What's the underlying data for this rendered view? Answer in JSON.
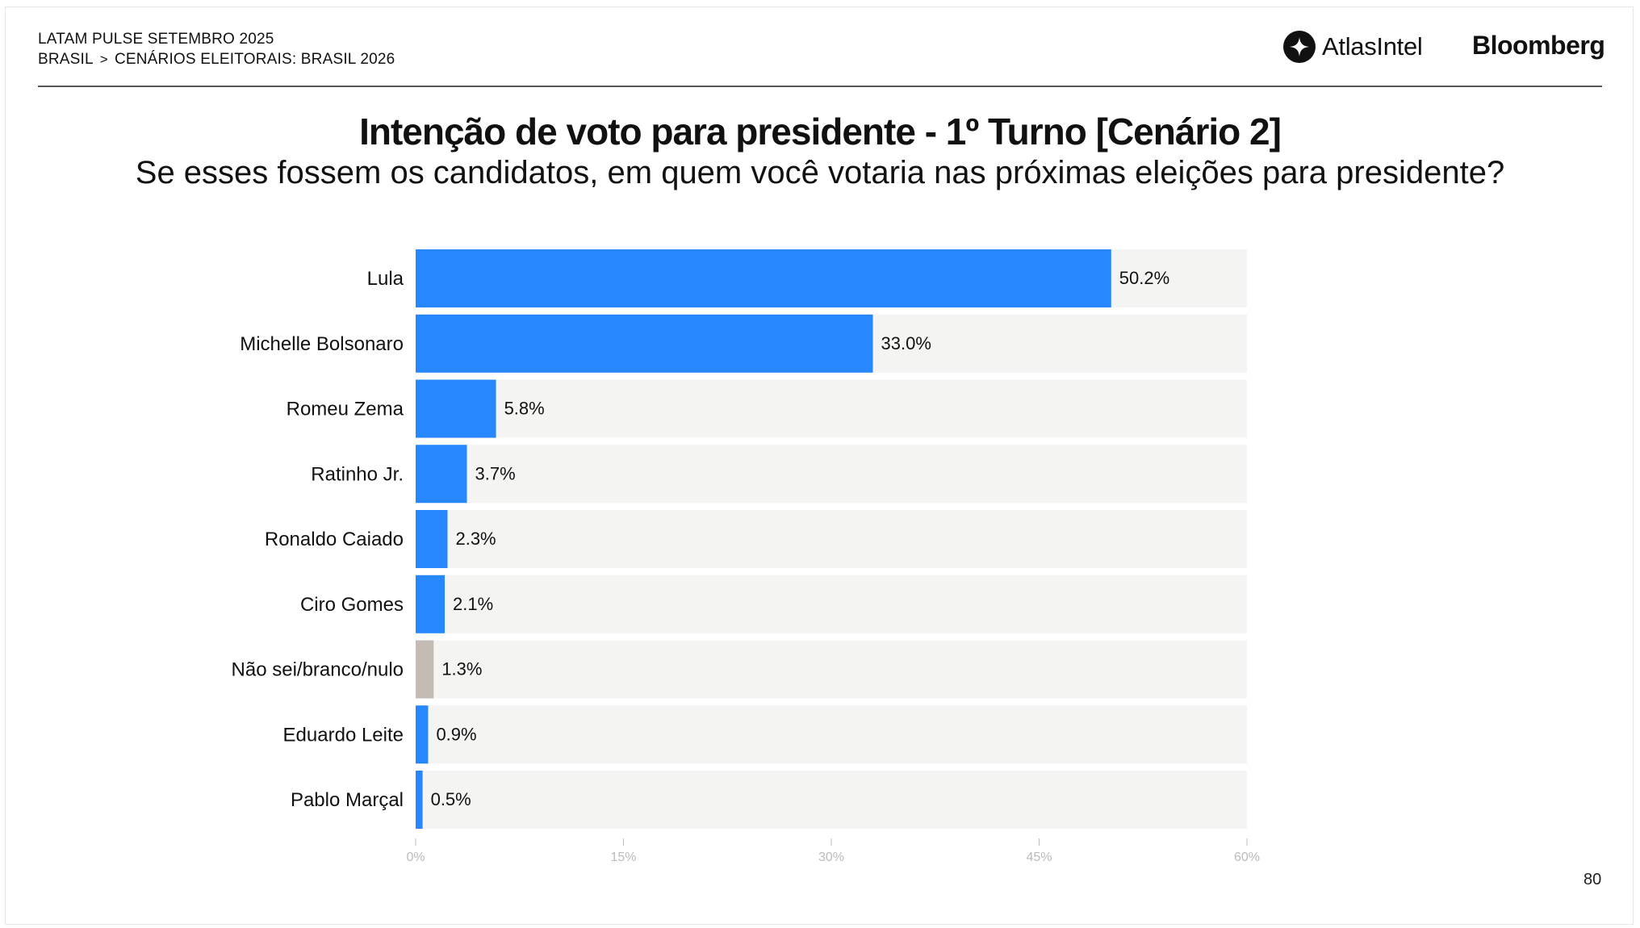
{
  "header": {
    "line1": "LATAM PULSE SETEMBRO 2025",
    "breadcrumb_part1": "BRASIL",
    "breadcrumb_separator": ">",
    "breadcrumb_part2": "CENÁRIOS ELEITORAIS: BRASIL 2026"
  },
  "logos": {
    "atlas": "AtlasIntel",
    "bloomberg": "Bloomberg"
  },
  "colors": {
    "bar_primary": "#2787FF",
    "bar_neutral": "#C5BBB5",
    "track": "#F4F4F3",
    "tick": "#BBBBBB"
  },
  "chart_data": {
    "type": "bar",
    "orientation": "horizontal",
    "title": "Intenção de voto para presidente - 1º Turno [Cenário 2]",
    "subtitle": "Se esses fossem os candidatos, em quem você votaria nas próximas eleições para presidente?",
    "categories": [
      "Lula",
      "Michelle Bolsonaro",
      "Romeu Zema",
      "Ratinho Jr.",
      "Ronaldo Caiado",
      "Ciro Gomes",
      "Não sei/branco/nulo",
      "Eduardo Leite",
      "Pablo Marçal"
    ],
    "values": [
      50.2,
      33.0,
      5.8,
      3.7,
      2.3,
      2.1,
      1.3,
      0.9,
      0.5
    ],
    "value_labels": [
      "50.2%",
      "33.0%",
      "5.8%",
      "3.7%",
      "2.3%",
      "2.1%",
      "1.3%",
      "0.9%",
      "0.5%"
    ],
    "neutral_category": "Não sei/branco/nulo",
    "xlim": [
      0,
      60
    ],
    "xticks": [
      0,
      15,
      30,
      45,
      60
    ],
    "xtick_labels": [
      "0%",
      "15%",
      "30%",
      "45%",
      "60%"
    ],
    "xlabel": "",
    "ylabel": "",
    "legend": "none",
    "grid": false
  },
  "page_number": "80"
}
